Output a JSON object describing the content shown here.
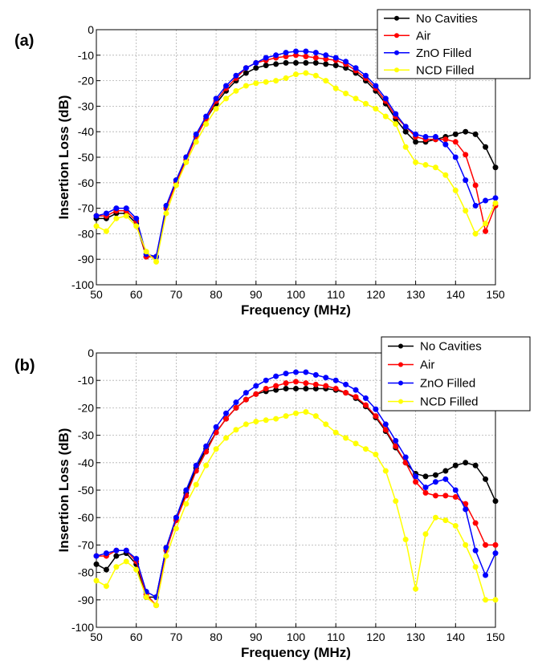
{
  "chart_data": [
    {
      "type": "line",
      "panel_label": "(a)",
      "xlabel": "Frequency (MHz)",
      "ylabel": "Insertion Loss (dB)",
      "xlim": [
        50,
        150
      ],
      "ylim": [
        -100,
        0
      ],
      "xticks": [
        50,
        60,
        70,
        80,
        90,
        100,
        110,
        120,
        130,
        140,
        150
      ],
      "yticks": [
        0,
        -10,
        -20,
        -30,
        -40,
        -50,
        -60,
        -70,
        -80,
        -90,
        -100
      ],
      "grid": true,
      "legend_position": "top-right",
      "x": [
        50,
        52.5,
        55,
        57.5,
        60,
        62.5,
        65,
        67.5,
        70,
        72.5,
        75,
        77.5,
        80,
        82.5,
        85,
        87.5,
        90,
        92.5,
        95,
        97.5,
        100,
        102.5,
        105,
        107.5,
        110,
        112.5,
        115,
        117.5,
        120,
        122.5,
        125,
        127.5,
        130,
        132.5,
        135,
        137.5,
        140,
        142.5,
        145,
        147.5,
        150
      ],
      "series": [
        {
          "name": "No Cavities",
          "color": "#000000",
          "values": [
            -74,
            -74,
            -72,
            -72,
            -76,
            -89,
            -89,
            -70,
            -59,
            -50,
            -42,
            -35,
            -29,
            -24,
            -20,
            -17,
            -15,
            -14,
            -13.5,
            -13,
            -13,
            -13,
            -13,
            -13.5,
            -14,
            -15,
            -17,
            -20,
            -24,
            -29,
            -35,
            -40,
            -44,
            -44,
            -43,
            -42,
            -41,
            -40,
            -41,
            -46,
            -54
          ]
        },
        {
          "name": "Air",
          "color": "#ff0000",
          "values": [
            -73,
            -73,
            -71,
            -71,
            -75,
            -89,
            -89,
            -70,
            -60,
            -51,
            -42,
            -35,
            -28,
            -23,
            -19,
            -15,
            -13,
            -12,
            -11,
            -10.5,
            -10,
            -10.5,
            -11,
            -11.5,
            -12,
            -13.5,
            -16,
            -19,
            -23,
            -28,
            -34,
            -38,
            -42,
            -43,
            -43,
            -43,
            -44,
            -49,
            -61,
            -79,
            -69
          ]
        },
        {
          "name": "ZnO Filled",
          "color": "#0000ff",
          "values": [
            -73,
            -72,
            -70,
            -70,
            -74,
            -88,
            -89,
            -69,
            -59,
            -50,
            -41,
            -34,
            -27,
            -22,
            -18,
            -15,
            -13,
            -11,
            -10,
            -9,
            -8.5,
            -8.5,
            -9,
            -10,
            -11,
            -12.5,
            -15,
            -18,
            -22,
            -27,
            -33,
            -38,
            -41,
            -42,
            -42,
            -45,
            -50,
            -59,
            -69,
            -67,
            -66
          ]
        },
        {
          "name": "NCD Filled",
          "color": "#ffff00",
          "values": [
            -77,
            -79,
            -74,
            -73,
            -77,
            -87,
            -91,
            -72,
            -61,
            -52,
            -44,
            -37,
            -31,
            -27,
            -24,
            -22,
            -21,
            -20.5,
            -20,
            -19,
            -17.5,
            -17,
            -18,
            -20,
            -23,
            -25,
            -27,
            -29,
            -31,
            -34,
            -37,
            -46,
            -52,
            -53,
            -54,
            -57,
            -63,
            -71,
            -80,
            -76,
            -68
          ]
        }
      ]
    },
    {
      "type": "line",
      "panel_label": "(b)",
      "xlabel": "Frequency (MHz)",
      "ylabel": "Insertion Loss (dB)",
      "xlim": [
        50,
        150
      ],
      "ylim": [
        -100,
        0
      ],
      "xticks": [
        50,
        60,
        70,
        80,
        90,
        100,
        110,
        120,
        130,
        140,
        150
      ],
      "yticks": [
        0,
        -10,
        -20,
        -30,
        -40,
        -50,
        -60,
        -70,
        -80,
        -90,
        -100
      ],
      "grid": true,
      "legend_position": "top-right",
      "x": [
        50,
        52.5,
        55,
        57.5,
        60,
        62.5,
        65,
        67.5,
        70,
        72.5,
        75,
        77.5,
        80,
        82.5,
        85,
        87.5,
        90,
        92.5,
        95,
        97.5,
        100,
        102.5,
        105,
        107.5,
        110,
        112.5,
        115,
        117.5,
        120,
        122.5,
        125,
        127.5,
        130,
        132.5,
        135,
        137.5,
        140,
        142.5,
        145,
        147.5,
        150
      ],
      "series": [
        {
          "name": "No Cavities",
          "color": "#000000",
          "values": [
            -77,
            -79,
            -74,
            -73,
            -77,
            -89,
            -89,
            -71,
            -60,
            -51,
            -42,
            -35,
            -29,
            -24,
            -20,
            -17,
            -15,
            -14,
            -13.5,
            -13,
            -13,
            -13,
            -13,
            -13,
            -13.5,
            -14.5,
            -16.5,
            -19.5,
            -23.5,
            -28.5,
            -34.5,
            -40,
            -44,
            -45,
            -44.5,
            -43,
            -41,
            -40,
            -41,
            -46,
            -54
          ]
        },
        {
          "name": "Air",
          "color": "#ff0000",
          "values": [
            -74,
            -74,
            -72,
            -72,
            -76,
            -88,
            -92,
            -72,
            -61,
            -52,
            -43,
            -36,
            -29,
            -24,
            -20,
            -17,
            -15,
            -13,
            -12,
            -11,
            -10.5,
            -11,
            -11.5,
            -12,
            -13,
            -14.5,
            -16,
            -19,
            -23,
            -28,
            -34,
            -40,
            -47,
            -51,
            -52,
            -52,
            -52.5,
            -55,
            -62,
            -70,
            -70
          ]
        },
        {
          "name": "ZnO Filled",
          "color": "#0000ff",
          "values": [
            -74,
            -73,
            -72,
            -72,
            -75,
            -87,
            -89,
            -71,
            -60,
            -50,
            -41,
            -34,
            -27,
            -22,
            -18,
            -14.5,
            -12,
            -10,
            -8.5,
            -7.5,
            -7,
            -7,
            -8,
            -9,
            -10,
            -11.5,
            -13.5,
            -16.5,
            -20.5,
            -26,
            -32,
            -38,
            -45,
            -49,
            -47,
            -46,
            -50,
            -57,
            -72,
            -81,
            -73
          ]
        },
        {
          "name": "NCD Filled",
          "color": "#ffff00",
          "values": [
            -83,
            -85,
            -78,
            -76,
            -79,
            -89,
            -92,
            -74,
            -64,
            -55,
            -48,
            -41,
            -35,
            -31,
            -28,
            -26,
            -25,
            -24.5,
            -24,
            -23,
            -22,
            -21.5,
            -23,
            -26,
            -29,
            -31,
            -33,
            -35,
            -37,
            -43,
            -54,
            -68,
            -86,
            -66,
            -60,
            -61,
            -63,
            -70,
            -78,
            -90,
            -90
          ]
        }
      ]
    }
  ]
}
